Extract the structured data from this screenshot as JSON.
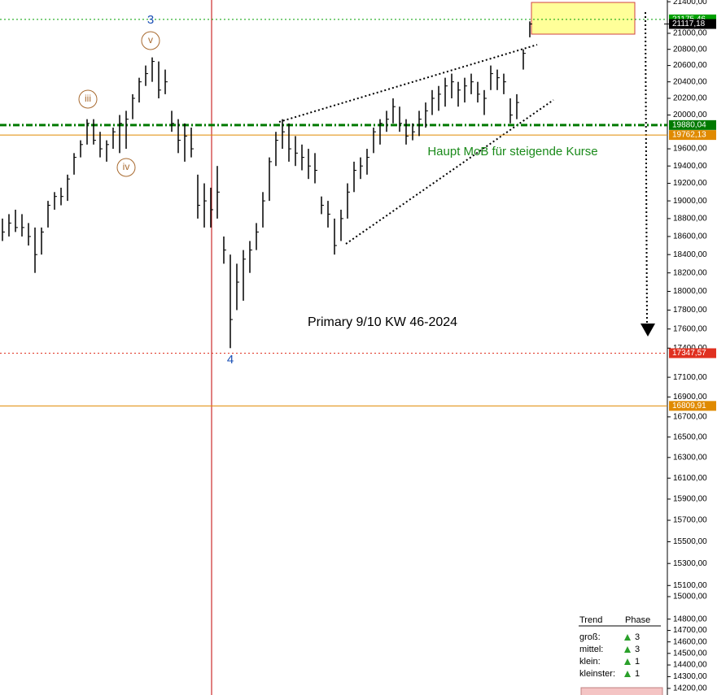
{
  "chart_data": {
    "type": "ohlc",
    "log_scale": true,
    "color": "#000000",
    "ylim": [
      14144,
      21422
    ],
    "yticks": [
      {
        "value": 21400,
        "label": "21400,00"
      },
      {
        "value": 21000,
        "label": "21000,00"
      },
      {
        "value": 20800,
        "label": "20800,00"
      },
      {
        "value": 20600,
        "label": "20600,00"
      },
      {
        "value": 20400,
        "label": "20400,00"
      },
      {
        "value": 20200,
        "label": "20200,00"
      },
      {
        "value": 20000,
        "label": "20000,00"
      },
      {
        "value": 19600,
        "label": "19600,00"
      },
      {
        "value": 19400,
        "label": "19400,00"
      },
      {
        "value": 19200,
        "label": "19200,00"
      },
      {
        "value": 19000,
        "label": "19000,00"
      },
      {
        "value": 18800,
        "label": "18800,00"
      },
      {
        "value": 18600,
        "label": "18600,00"
      },
      {
        "value": 18400,
        "label": "18400,00"
      },
      {
        "value": 18200,
        "label": "18200,00"
      },
      {
        "value": 18000,
        "label": "18000,00"
      },
      {
        "value": 17800,
        "label": "17800,00"
      },
      {
        "value": 17600,
        "label": "17600,00"
      },
      {
        "value": 17400,
        "label": "17400,00"
      },
      {
        "value": 17100,
        "label": "17100,00"
      },
      {
        "value": 16900,
        "label": "16900,00"
      },
      {
        "value": 16700,
        "label": "16700,00"
      },
      {
        "value": 16500,
        "label": "16500,00"
      },
      {
        "value": 16300,
        "label": "16300,00"
      },
      {
        "value": 16100,
        "label": "16100,00"
      },
      {
        "value": 15900,
        "label": "15900,00"
      },
      {
        "value": 15700,
        "label": "15700,00"
      },
      {
        "value": 15500,
        "label": "15500,00"
      },
      {
        "value": 15300,
        "label": "15300,00"
      },
      {
        "value": 15100,
        "label": "15100,00"
      },
      {
        "value": 15000,
        "label": "15000,00"
      },
      {
        "value": 14800,
        "label": "14800,00"
      },
      {
        "value": 14700,
        "label": "14700,00"
      },
      {
        "value": 14600,
        "label": "14600,00"
      },
      {
        "value": 14500,
        "label": "14500,00"
      },
      {
        "value": 14400,
        "label": "14400,00"
      },
      {
        "value": 14300,
        "label": "14300,00"
      },
      {
        "value": 14200,
        "label": "14200,00"
      }
    ],
    "high": [
      18800,
      18850,
      18900,
      18850,
      18750,
      18700,
      18700,
      19000,
      19100,
      19150,
      19300,
      19550,
      19700,
      19950,
      19950,
      19800,
      19700,
      19850,
      20000,
      20050,
      20250,
      20450,
      20600,
      20700,
      20650,
      20550,
      20050,
      19950,
      19900,
      19850,
      19300,
      19200,
      19150,
      19400,
      18600,
      18400,
      18300,
      18450,
      18550,
      18750,
      19100,
      19500,
      19800,
      19950,
      19900,
      19750,
      19650,
      19600,
      19550,
      19050,
      19000,
      18800,
      18900,
      19200,
      19450,
      19500,
      19600,
      19850,
      19950,
      20050,
      20200,
      20100,
      19950,
      19900,
      20050,
      20150,
      20300,
      20350,
      20450,
      20500,
      20400,
      20450,
      20500,
      20400,
      20300,
      20600,
      20550,
      20500,
      20200,
      20250,
      20800,
      21150
    ],
    "low": [
      18550,
      18600,
      18650,
      18600,
      18500,
      18200,
      18400,
      18700,
      18900,
      18950,
      19000,
      19300,
      19500,
      19650,
      19650,
      19500,
      19450,
      19600,
      19550,
      19600,
      19950,
      20150,
      20350,
      20400,
      20200,
      20250,
      19800,
      19550,
      19450,
      19500,
      18800,
      18700,
      18700,
      18800,
      18300,
      17400,
      17800,
      17900,
      18200,
      18450,
      18700,
      19000,
      19400,
      19600,
      19450,
      19400,
      19350,
      19250,
      19200,
      18850,
      18700,
      18400,
      18550,
      18800,
      19100,
      19250,
      19300,
      19550,
      19650,
      19800,
      19900,
      19800,
      19650,
      19700,
      19750,
      19850,
      20000,
      20050,
      20100,
      20200,
      20100,
      20150,
      20250,
      20150,
      20000,
      20300,
      20300,
      20250,
      19900,
      19950,
      20550,
      20950
    ],
    "close": [
      18650,
      18750,
      18700,
      18700,
      18600,
      18400,
      18650,
      18950,
      19050,
      19050,
      19250,
      19500,
      19650,
      19900,
      19700,
      19600,
      19650,
      19800,
      19900,
      19950,
      20200,
      20400,
      20500,
      20650,
      20300,
      20400,
      19900,
      19700,
      19750,
      19600,
      18950,
      19000,
      18900,
      19100,
      18450,
      17700,
      18100,
      18350,
      18450,
      18650,
      19000,
      19450,
      19700,
      19800,
      19600,
      19550,
      19500,
      19400,
      19350,
      18950,
      18850,
      18500,
      18800,
      19100,
      19350,
      19400,
      19500,
      19800,
      19900,
      19950,
      20100,
      19900,
      19750,
      19800,
      19950,
      20050,
      20200,
      20250,
      20350,
      20400,
      20300,
      20350,
      20400,
      20250,
      20200,
      20500,
      20450,
      20400,
      20000,
      20150,
      20750,
      21117.18
    ],
    "levels": [
      {
        "value": 21175.46,
        "label": "21175,46",
        "color": "#00a000",
        "style": "dotted"
      },
      {
        "value": 21117.18,
        "label": "21117,18",
        "color": "#000000",
        "style": "none"
      },
      {
        "value": 19880.04,
        "label": "19880,04",
        "color": "#007a00",
        "style": "dashdot"
      },
      {
        "value": 19762.13,
        "label": "19762,13",
        "color": "#e08a00",
        "style": "solid"
      },
      {
        "value": 17347.57,
        "label": "17347,57",
        "color": "#e03020",
        "style": "dotted"
      },
      {
        "value": 16809.91,
        "label": "16809,91",
        "color": "#e08a00",
        "style": "solid"
      }
    ],
    "annotations": [
      {
        "text": "3",
        "color": "#1a4fb5"
      },
      {
        "text": "v",
        "color": "#a86a30"
      },
      {
        "text": "iii",
        "color": "#a86a30"
      },
      {
        "text": "iv",
        "color": "#a86a30"
      },
      {
        "text": "4",
        "color": "#1a4fb5"
      },
      {
        "text": "Haupt MoB für steigende Kurse",
        "color": "#1a8a1a"
      },
      {
        "text": "Primary 9/10 KW 46-2024",
        "color": "#000000"
      }
    ]
  },
  "trend_table": {
    "headers": [
      "Trend",
      "Phase"
    ],
    "rows": [
      [
        "groß:",
        "3"
      ],
      [
        "mittel:",
        "3"
      ],
      [
        "klein:",
        "1"
      ],
      [
        "kleinster:",
        "1"
      ]
    ]
  }
}
